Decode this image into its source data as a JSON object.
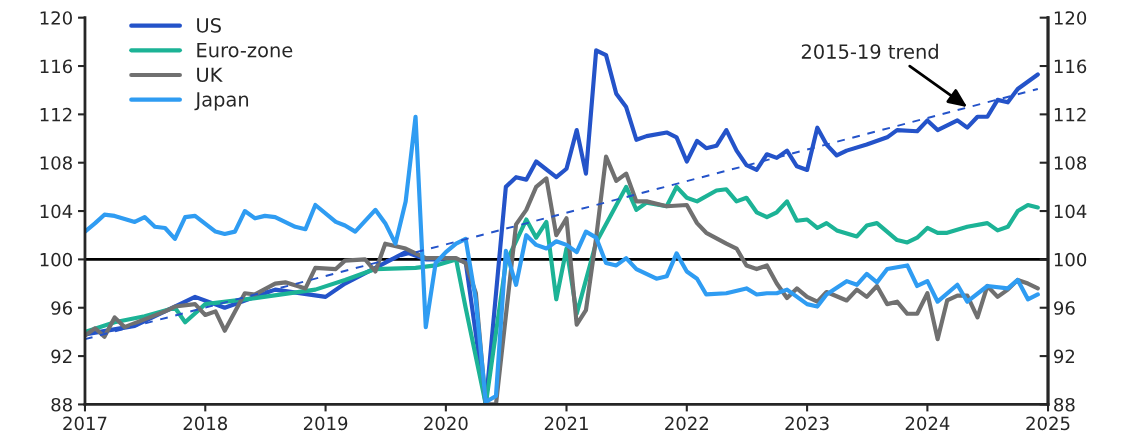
{
  "chart_data": {
    "type": "line",
    "xlim": [
      "2017",
      "2025"
    ],
    "xticks": [
      {
        "value": "2017",
        "label": "2017"
      },
      {
        "value": "2018",
        "label": "2018"
      },
      {
        "value": "2019",
        "label": "2019"
      },
      {
        "value": "2020",
        "label": "2020"
      },
      {
        "value": "2021",
        "label": "2021"
      },
      {
        "value": "2022",
        "label": "2022"
      },
      {
        "value": "2023",
        "label": "2023"
      },
      {
        "value": "2024",
        "label": "2024"
      },
      {
        "value": "2025",
        "label": "2025"
      }
    ],
    "ylim": [
      88,
      120
    ],
    "yticks": [
      88,
      92,
      96,
      100,
      104,
      108,
      112,
      116,
      120
    ],
    "y2lim": [
      88,
      120
    ],
    "y2ticks": [
      88,
      92,
      96,
      100,
      104,
      108,
      112,
      116,
      120
    ],
    "grid": false,
    "legend": "top left",
    "marker": "none",
    "ref_lines": [
      {
        "axis": "y",
        "value": 100,
        "color": "#000000"
      }
    ],
    "annotations": [
      {
        "text": "2015-19 trend",
        "x": "2024-05",
        "y": 112.6
      }
    ],
    "series": [
      {
        "name": "US",
        "color": "#2453c9",
        "x": [
          "2017-01",
          "2017-06",
          "2017-12",
          "2018-03",
          "2018-08",
          "2019-01",
          "2019-03",
          "2019-09",
          "2019-11",
          "2020-02",
          "2020-03",
          "2020-05",
          "2020-07",
          "2020-08",
          "2020-09",
          "2020-10",
          "2020-12",
          "2021-01",
          "2021-02",
          "2021-03",
          "2021-04",
          "2021-05",
          "2021-06",
          "2021-07",
          "2021-08",
          "2021-09",
          "2021-11",
          "2021-12",
          "2022-01",
          "2022-02",
          "2022-03",
          "2022-04",
          "2022-05",
          "2022-06",
          "2022-07",
          "2022-08",
          "2022-09",
          "2022-10",
          "2022-11",
          "2022-12",
          "2023-01",
          "2023-02",
          "2023-03",
          "2023-04",
          "2023-05",
          "2023-07",
          "2023-09",
          "2023-10",
          "2023-12",
          "2024-01",
          "2024-02",
          "2024-04",
          "2024-05",
          "2024-06",
          "2024-07",
          "2024-08",
          "2024-09",
          "2024-10",
          "2024-12"
        ],
        "values": [
          93.8,
          94.5,
          96.9,
          96.0,
          97.5,
          96.9,
          98.0,
          100.6,
          100.0,
          100.0,
          99.8,
          88.0,
          106.0,
          106.8,
          106.6,
          108.1,
          106.8,
          107.5,
          110.7,
          107.1,
          117.3,
          116.9,
          113.7,
          112.6,
          109.9,
          110.2,
          110.5,
          110.1,
          108.1,
          109.8,
          109.2,
          109.4,
          110.7,
          109.0,
          107.8,
          107.4,
          108.7,
          108.4,
          109.0,
          107.7,
          107.4,
          110.9,
          109.5,
          108.6,
          109.0,
          109.5,
          110.1,
          110.7,
          110.6,
          111.5,
          110.7,
          111.5,
          110.9,
          111.8,
          111.8,
          113.2,
          113.0,
          114.1,
          115.3
        ]
      },
      {
        "name": "Euro-zone",
        "color": "#1cb396",
        "x": [
          "2017-01",
          "2017-04",
          "2017-07",
          "2017-10",
          "2017-11",
          "2018-01",
          "2018-06",
          "2018-12",
          "2019-03",
          "2019-06",
          "2019-10",
          "2019-12",
          "2020-02",
          "2020-03",
          "2020-05",
          "2020-07",
          "2020-09",
          "2020-10",
          "2020-11",
          "2020-12",
          "2021-01",
          "2021-02",
          "2021-04",
          "2021-07",
          "2021-08",
          "2021-09",
          "2021-11",
          "2021-12",
          "2022-01",
          "2022-02",
          "2022-04",
          "2022-05",
          "2022-06",
          "2022-07",
          "2022-08",
          "2022-09",
          "2022-10",
          "2022-11",
          "2022-12",
          "2023-01",
          "2023-02",
          "2023-03",
          "2023-04",
          "2023-06",
          "2023-07",
          "2023-08",
          "2023-10",
          "2023-11",
          "2023-12",
          "2024-01",
          "2024-02",
          "2024-03",
          "2024-05",
          "2024-07",
          "2024-08",
          "2024-09",
          "2024-10",
          "2024-11",
          "2024-12"
        ],
        "values": [
          94.0,
          94.8,
          95.3,
          96.0,
          94.8,
          96.3,
          96.8,
          97.5,
          98.3,
          99.2,
          99.3,
          99.5,
          100.0,
          96.0,
          88.0,
          99.7,
          103.3,
          101.8,
          103.1,
          96.7,
          100.9,
          95.5,
          101.4,
          106.0,
          104.1,
          104.7,
          104.4,
          106.0,
          105.1,
          104.8,
          105.7,
          105.8,
          104.8,
          105.1,
          103.9,
          103.5,
          103.9,
          104.8,
          103.2,
          103.3,
          102.6,
          103.0,
          102.4,
          101.9,
          102.8,
          103.0,
          101.6,
          101.4,
          101.8,
          102.6,
          102.2,
          102.2,
          102.7,
          103.0,
          102.4,
          102.7,
          104.0,
          104.5,
          104.3
        ]
      },
      {
        "name": "UK",
        "color": "#707070",
        "x": [
          "2017-01",
          "2017-02",
          "2017-03",
          "2017-04",
          "2017-05",
          "2017-09",
          "2017-10",
          "2017-12",
          "2018-01",
          "2018-02",
          "2018-03",
          "2018-05",
          "2018-06",
          "2018-08",
          "2018-09",
          "2018-11",
          "2018-12",
          "2019-02",
          "2019-03",
          "2019-05",
          "2019-06",
          "2019-07",
          "2019-09",
          "2019-10",
          "2019-11",
          "2020-02",
          "2020-03",
          "2020-04",
          "2020-05",
          "2020-06",
          "2020-08",
          "2020-09",
          "2020-10",
          "2020-11",
          "2020-12",
          "2021-01",
          "2021-02",
          "2021-03",
          "2021-04",
          "2021-05",
          "2021-06",
          "2021-07",
          "2021-08",
          "2021-09",
          "2021-11",
          "2022-01",
          "2022-02",
          "2022-03",
          "2022-05",
          "2022-06",
          "2022-07",
          "2022-08",
          "2022-09",
          "2022-10",
          "2022-11",
          "2022-12",
          "2023-01",
          "2023-02",
          "2023-03",
          "2023-05",
          "2023-06",
          "2023-07",
          "2023-08",
          "2023-09",
          "2023-10",
          "2023-11",
          "2023-12",
          "2024-01",
          "2024-02",
          "2024-03",
          "2024-04",
          "2024-05",
          "2024-06",
          "2024-07",
          "2024-08",
          "2024-09",
          "2024-10",
          "2024-11",
          "2024-12"
        ],
        "values": [
          93.7,
          94.3,
          93.6,
          95.2,
          94.4,
          95.7,
          96.1,
          96.3,
          95.4,
          95.7,
          94.1,
          97.2,
          97.1,
          98.0,
          98.1,
          97.6,
          99.3,
          99.2,
          99.9,
          100.0,
          99.0,
          101.3,
          100.9,
          100.5,
          100.1,
          100.1,
          99.7,
          97.2,
          88.0,
          88.0,
          102.9,
          104.1,
          106.0,
          106.7,
          102.0,
          103.4,
          94.6,
          95.8,
          101.8,
          108.5,
          106.5,
          107.1,
          104.8,
          104.8,
          104.4,
          104.5,
          103.0,
          102.2,
          101.3,
          100.9,
          99.5,
          99.2,
          99.5,
          98.0,
          96.8,
          97.6,
          96.9,
          96.5,
          97.3,
          96.6,
          97.5,
          96.9,
          97.8,
          96.3,
          96.5,
          95.5,
          95.5,
          97.2,
          93.4,
          96.6,
          97.0,
          97.0,
          95.2,
          97.8,
          96.9,
          97.5,
          98.3,
          98.0,
          97.6
        ]
      },
      {
        "name": "Japan",
        "color": "#2f9cf2",
        "x": [
          "2017-01",
          "2017-02",
          "2017-03",
          "2017-04",
          "2017-06",
          "2017-07",
          "2017-08",
          "2017-09",
          "2017-10",
          "2017-11",
          "2017-12",
          "2018-02",
          "2018-03",
          "2018-04",
          "2018-05",
          "2018-06",
          "2018-07",
          "2018-08",
          "2018-10",
          "2018-11",
          "2018-12",
          "2019-02",
          "2019-03",
          "2019-04",
          "2019-06",
          "2019-07",
          "2019-08",
          "2019-09",
          "2019-10",
          "2019-11",
          "2019-12",
          "2020-01",
          "2020-02",
          "2020-03",
          "2020-04",
          "2020-05",
          "2020-06",
          "2020-07",
          "2020-08",
          "2020-09",
          "2020-10",
          "2020-11",
          "2020-12",
          "2021-01",
          "2021-02",
          "2021-03",
          "2021-04",
          "2021-05",
          "2021-06",
          "2021-07",
          "2021-08",
          "2021-10",
          "2021-11",
          "2021-12",
          "2022-01",
          "2022-02",
          "2022-03",
          "2022-05",
          "2022-07",
          "2022-08",
          "2022-09",
          "2022-10",
          "2022-11",
          "2023-01",
          "2023-02",
          "2023-03",
          "2023-05",
          "2023-06",
          "2023-07",
          "2023-08",
          "2023-09",
          "2023-11",
          "2023-12",
          "2024-01",
          "2024-02",
          "2024-04",
          "2024-05",
          "2024-07",
          "2024-09",
          "2024-10",
          "2024-11",
          "2024-12"
        ],
        "values": [
          102.3,
          103.0,
          103.7,
          103.6,
          103.1,
          103.5,
          102.7,
          102.6,
          101.7,
          103.5,
          103.6,
          102.3,
          102.1,
          102.3,
          104.0,
          103.4,
          103.6,
          103.5,
          102.7,
          102.5,
          104.5,
          103.1,
          102.8,
          102.3,
          104.1,
          103.0,
          101.3,
          104.8,
          111.8,
          94.4,
          99.7,
          100.6,
          101.3,
          101.7,
          96.6,
          88.2,
          88.7,
          100.7,
          97.9,
          102.0,
          101.2,
          100.9,
          101.5,
          101.2,
          100.6,
          102.3,
          101.8,
          99.7,
          99.5,
          100.1,
          99.2,
          98.4,
          98.6,
          100.5,
          99.0,
          98.4,
          97.1,
          97.2,
          97.6,
          97.1,
          97.2,
          97.2,
          97.5,
          96.3,
          96.1,
          97.1,
          98.2,
          97.9,
          98.8,
          98.1,
          99.2,
          99.5,
          97.8,
          98.2,
          96.5,
          97.9,
          96.5,
          97.8,
          97.6,
          98.3,
          96.7,
          97.1
        ]
      },
      {
        "type": "line",
        "color": "#2453c9",
        "line_style": "dashed",
        "x": [
          "2017-01",
          "2024-12"
        ],
        "values": [
          93.4,
          114.1
        ]
      }
    ]
  }
}
